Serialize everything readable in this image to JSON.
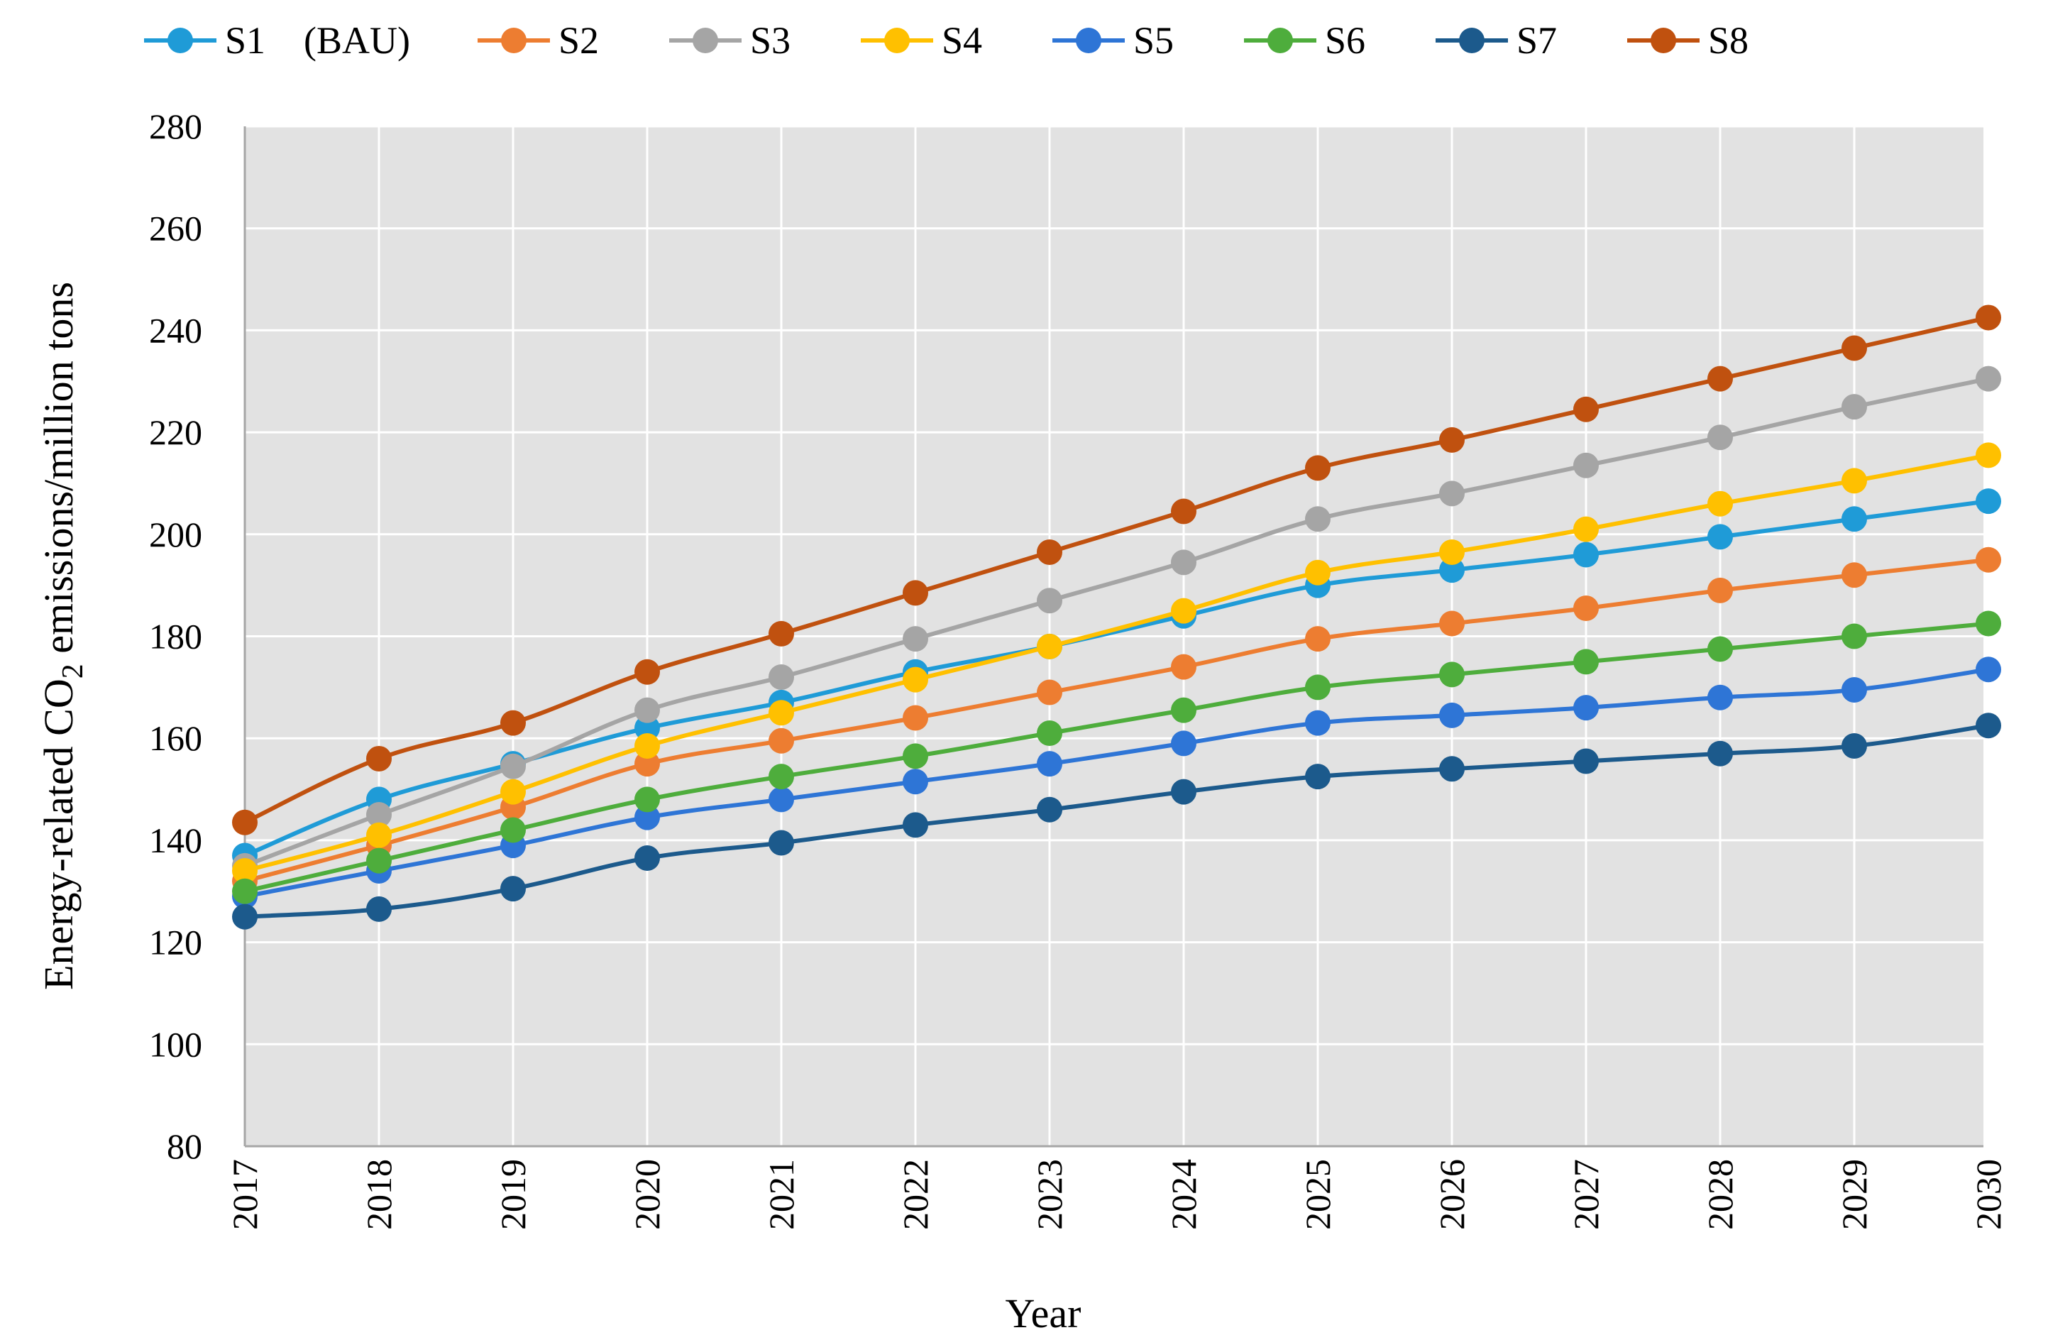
{
  "chart_data": {
    "type": "line",
    "title": "",
    "xlabel": "Year",
    "ylabel_prefix": "Energy-related CO",
    "ylabel_subscript": "2",
    "ylabel_suffix": " emissions/million tons",
    "ylim": [
      80,
      280
    ],
    "yticks": [
      80,
      100,
      120,
      140,
      160,
      180,
      200,
      220,
      240,
      260,
      280
    ],
    "categories": [
      "2017",
      "2018",
      "2019",
      "2020",
      "2021",
      "2022",
      "2023",
      "2024",
      "2025",
      "2026",
      "2027",
      "2028",
      "2029",
      "2030"
    ],
    "grid": true,
    "legend_position": "top",
    "series": [
      {
        "name": "S1　(BAU)",
        "color": "#1f9bd7",
        "values": [
          137,
          148,
          155,
          162,
          167,
          173,
          178,
          184,
          190,
          193,
          196,
          199.5,
          203,
          206.5
        ]
      },
      {
        "name": "S2",
        "color": "#ed7d31",
        "values": [
          132,
          139,
          146.5,
          155,
          159.5,
          164,
          169,
          174,
          179.5,
          182.5,
          185.5,
          189,
          192,
          195
        ]
      },
      {
        "name": "S3",
        "color": "#a5a5a5",
        "values": [
          135,
          145,
          154.5,
          165.5,
          172,
          179.5,
          187,
          194.5,
          203,
          208,
          213.5,
          219,
          225,
          230.5
        ]
      },
      {
        "name": "S4",
        "color": "#ffc000",
        "values": [
          134,
          141,
          149.5,
          158.5,
          165,
          171.5,
          178,
          185,
          192.5,
          196.5,
          201,
          206,
          210.5,
          215.5
        ]
      },
      {
        "name": "S5",
        "color": "#2e75d6",
        "values": [
          129,
          134,
          139,
          144.5,
          148,
          151.5,
          155,
          159,
          163,
          164.5,
          166,
          168,
          169.5,
          173.5
        ]
      },
      {
        "name": "S6",
        "color": "#4ead3c",
        "values": [
          130,
          136,
          142,
          148,
          152.5,
          156.5,
          161,
          165.5,
          170,
          172.5,
          175,
          177.5,
          180,
          182.5
        ]
      },
      {
        "name": "S7",
        "color": "#1c5a8c",
        "values": [
          125,
          126.5,
          130.5,
          136.5,
          139.5,
          143,
          146,
          149.5,
          152.5,
          154,
          155.5,
          157,
          158.5,
          162.5
        ]
      },
      {
        "name": "S8",
        "color": "#c0510f",
        "values": [
          143.5,
          156,
          163,
          173,
          180.5,
          188.5,
          196.5,
          204.5,
          213,
          218.5,
          224.5,
          230.5,
          236.5,
          242.5
        ]
      }
    ]
  },
  "colors": {
    "plot_background": "#e2e2e2",
    "grid": "#ffffff",
    "axis": "#a6a6a6"
  }
}
